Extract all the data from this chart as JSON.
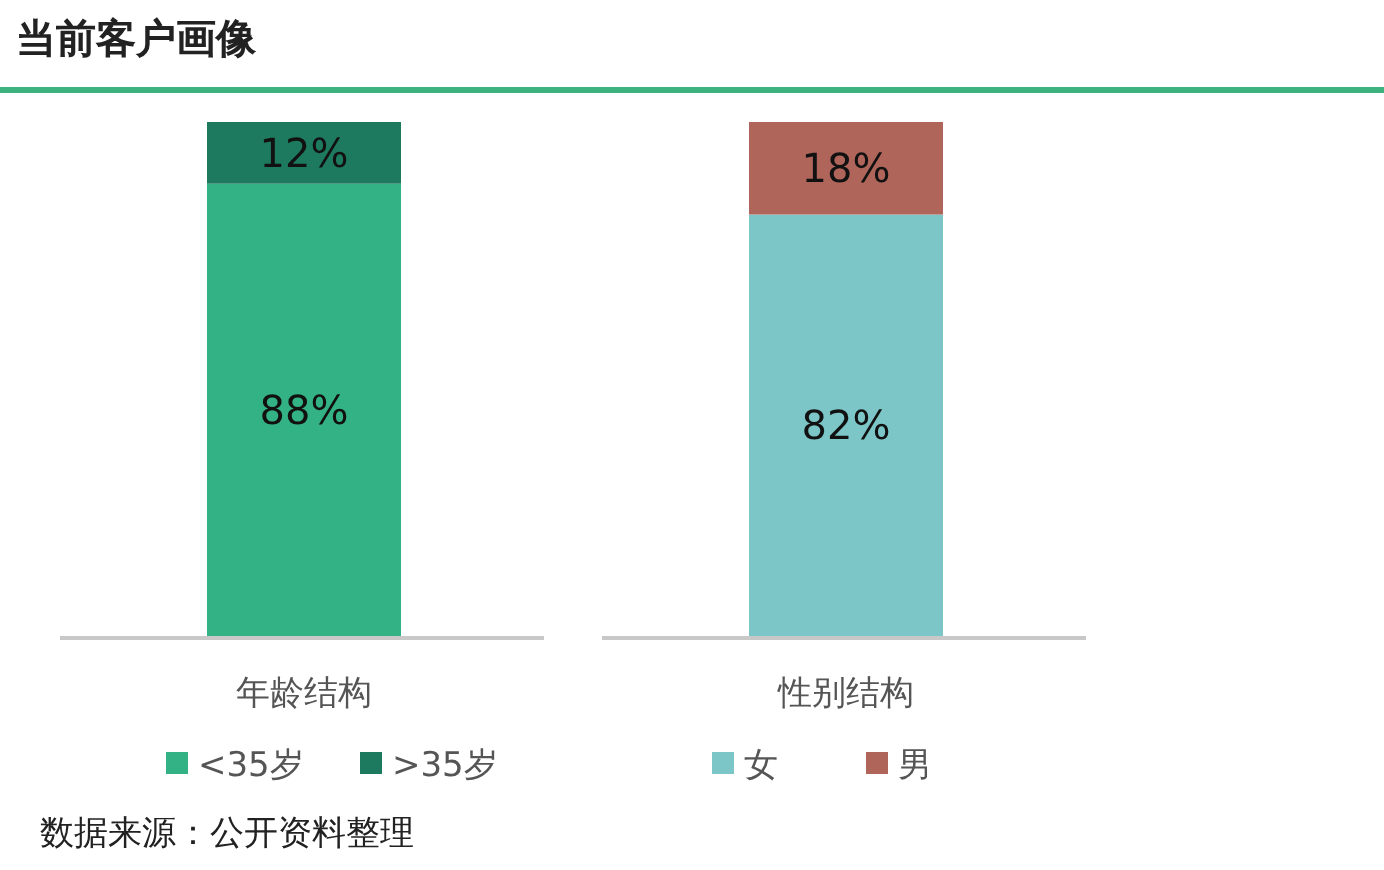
{
  "chart_data": {
    "type": "bar",
    "stacked": true,
    "title": "当前客户画像",
    "categories": [
      "年龄结构",
      "性别结构"
    ],
    "series": [
      {
        "name": "<35岁",
        "color": "#33b285",
        "values": [
          88,
          null
        ],
        "value_labels": [
          "88%",
          null
        ]
      },
      {
        "name": ">35岁",
        "color": "#1e7a5e",
        "values": [
          12,
          null
        ],
        "value_labels": [
          "12%",
          null
        ]
      },
      {
        "name": "女",
        "color": "#7cc6c8",
        "values": [
          null,
          82
        ],
        "value_labels": [
          null,
          "82%"
        ]
      },
      {
        "name": "男",
        "color": "#b0655a",
        "values": [
          null,
          18
        ],
        "value_labels": [
          null,
          "18%"
        ]
      }
    ],
    "legend": "bottom",
    "annotations": [
      "数据来源：公开资料整理"
    ]
  }
}
